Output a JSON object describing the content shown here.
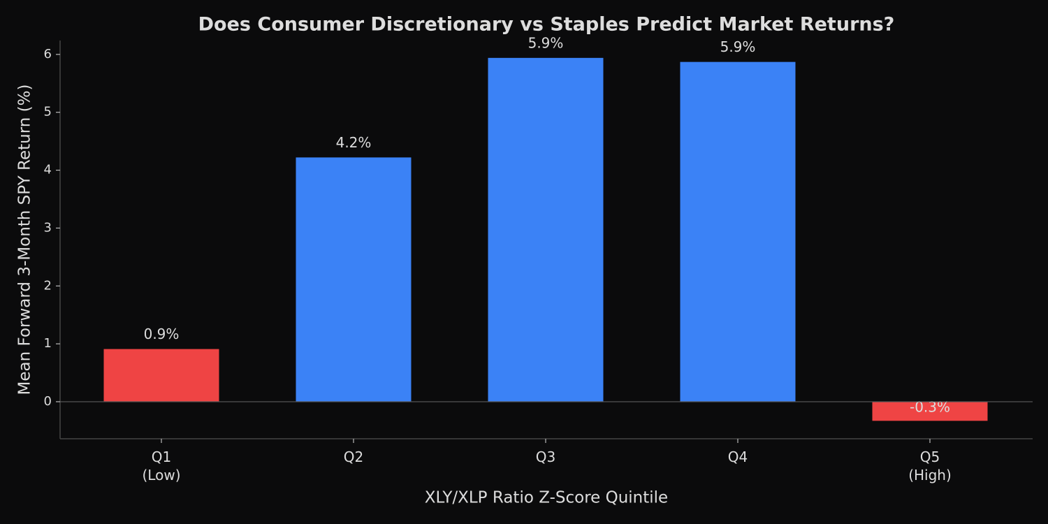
{
  "chart_data": {
    "type": "bar",
    "title": "Does Consumer Discretionary vs Staples Predict Market Returns?",
    "x_label": "XLY/XLP Ratio Z-Score Quintile",
    "y_label": "Mean Forward 3-Month SPY Return (%)",
    "categories": [
      "Q1\n(Low)",
      "Q2",
      "Q3",
      "Q4",
      "Q5\n(High)"
    ],
    "values": [
      0.91,
      4.22,
      5.94,
      5.87,
      -0.33
    ],
    "value_labels": [
      "0.9%",
      "4.2%",
      "5.9%",
      "5.9%",
      "-0.3%"
    ],
    "colors": [
      "#ef4444",
      "#3b82f6",
      "#3b82f6",
      "#3b82f6",
      "#ef4444"
    ],
    "ylim": [
      -0.64,
      6.24
    ],
    "yticks": [
      0,
      1,
      2,
      3,
      4,
      5,
      6
    ],
    "grid": false
  }
}
